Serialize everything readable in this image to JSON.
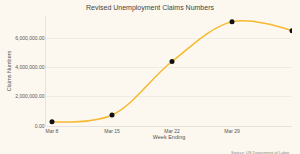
{
  "chart_data": {
    "type": "line",
    "title": "Revised Unemployment Claims Numbers",
    "x_label": "Week Ending",
    "y_label": "Claims Numbers",
    "source": "Source: US Department of Labor",
    "categories": [
      "Mar 8",
      "Mar 15",
      "Mar 22",
      "Mar 29",
      null
    ],
    "values": [
      282000,
      750000,
      4400000,
      7100000,
      6500000
    ],
    "color": "#f5b82e",
    "marker": "circle",
    "line_style": "spline",
    "ylim": [
      0,
      7500000
    ],
    "yticks": [
      {
        "value": 0,
        "label": "0.00"
      },
      {
        "value": 2000000,
        "label": "2,000,000.00"
      },
      {
        "value": 4000000,
        "label": "4,000,000.00"
      },
      {
        "value": 6000000,
        "label": "6,000,000.00"
      }
    ],
    "grid": true
  }
}
